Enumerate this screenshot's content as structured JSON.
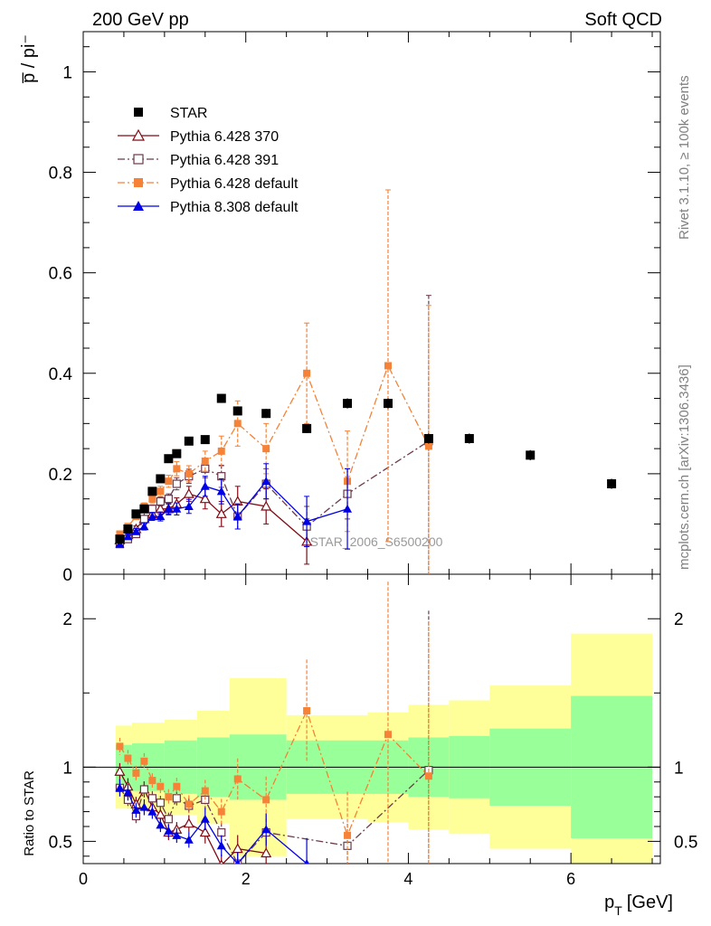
{
  "header": {
    "left_label": "200 GeV pp",
    "right_label": "Soft QCD"
  },
  "side_labels": {
    "rivet": "Rivet 3.1.10, ≥ 100k events",
    "mcplots": "mcplots.cern.ch [arXiv:1306.3436]"
  },
  "analysis_label": "STAR_2006_S6500200",
  "chart_data": {
    "type": "scatter",
    "ylabel": "p̅ / pi⁻",
    "xlabel": "p_T [GeV]",
    "xlabel_main": "p",
    "xlabel_sub": "T",
    "xlabel_unit": "[GeV]",
    "ratio_ylabel": "Ratio to STAR",
    "xlim": [
      0,
      7.1
    ],
    "ylim": [
      0,
      1.08
    ],
    "ratio_ylim": [
      0.35,
      2.3
    ],
    "x_ticks": [
      "0",
      "2",
      "4",
      "6"
    ],
    "y_ticks": [
      "0",
      "0.2",
      "0.4",
      "0.6",
      "0.8",
      "1"
    ],
    "ratio_ticks": [
      "0.5",
      "1",
      "2"
    ],
    "legend_position": "top-left",
    "legend": [
      "STAR",
      "Pythia 6.428 370",
      "Pythia 6.428 391",
      "Pythia 6.428 default",
      "Pythia 8.308 default"
    ],
    "series": [
      {
        "name": "STAR",
        "color": "#000000",
        "marker": "square-filled",
        "line": "none",
        "x": [
          0.45,
          0.55,
          0.65,
          0.75,
          0.85,
          0.95,
          1.05,
          1.15,
          1.3,
          1.5,
          1.7,
          1.9,
          2.25,
          2.75,
          3.25,
          3.75,
          4.25,
          4.75,
          5.5,
          6.5
        ],
        "y": [
          0.07,
          0.09,
          0.12,
          0.13,
          0.165,
          0.19,
          0.23,
          0.24,
          0.265,
          0.268,
          0.35,
          0.325,
          0.32,
          0.29,
          0.34,
          0.34,
          0.27,
          0.27,
          0.237,
          0.18
        ],
        "err": [
          0.005,
          0.005,
          0.005,
          0.006,
          0.006,
          0.007,
          0.007,
          0.008,
          0.008,
          0.008,
          0.009,
          0.009,
          0.009,
          0.009,
          0.01,
          0.01,
          0.01,
          0.01,
          0.01,
          0.01
        ]
      },
      {
        "name": "Pythia 6.428 370",
        "color": "#7f0a14",
        "marker": "triangle-open",
        "line": "solid",
        "x": [
          0.45,
          0.55,
          0.65,
          0.75,
          0.85,
          0.95,
          1.05,
          1.15,
          1.3,
          1.5,
          1.7,
          1.9,
          2.25,
          2.75
        ],
        "y": [
          0.068,
          0.078,
          0.09,
          0.11,
          0.12,
          0.13,
          0.13,
          0.14,
          0.16,
          0.15,
          0.12,
          0.145,
          0.135,
          0.065
        ],
        "err": [
          0.004,
          0.005,
          0.006,
          0.007,
          0.008,
          0.01,
          0.012,
          0.012,
          0.015,
          0.02,
          0.025,
          0.03,
          0.035,
          0.045
        ]
      },
      {
        "name": "Pythia 6.428 391",
        "color": "#6b3a4a",
        "marker": "square-open",
        "line": "dashdot",
        "x": [
          0.45,
          0.55,
          0.65,
          0.75,
          0.85,
          0.95,
          1.05,
          1.15,
          1.3,
          1.5,
          1.7,
          1.9,
          2.25,
          2.75,
          3.25,
          4.25
        ],
        "y": [
          0.06,
          0.07,
          0.08,
          0.11,
          0.13,
          0.145,
          0.15,
          0.18,
          0.195,
          0.21,
          0.195,
          0.115,
          0.18,
          0.095,
          0.16,
          0.265
        ],
        "err": [
          0.004,
          0.005,
          0.006,
          0.007,
          0.008,
          0.009,
          0.01,
          0.012,
          0.014,
          0.018,
          0.022,
          0.025,
          0.03,
          0.04,
          0.05,
          0.29
        ]
      },
      {
        "name": "Pythia 6.428 default",
        "color": "#f58236",
        "marker": "square-filled",
        "line": "dashdot",
        "x": [
          0.45,
          0.55,
          0.65,
          0.75,
          0.85,
          0.95,
          1.05,
          1.15,
          1.3,
          1.5,
          1.7,
          1.9,
          2.25,
          2.75,
          3.25,
          3.75,
          4.25
        ],
        "y": [
          0.08,
          0.095,
          0.115,
          0.135,
          0.15,
          0.165,
          0.185,
          0.21,
          0.2,
          0.225,
          0.245,
          0.3,
          0.25,
          0.4,
          0.185,
          0.415,
          0.255
        ],
        "err": [
          0.004,
          0.005,
          0.006,
          0.007,
          0.008,
          0.01,
          0.012,
          0.014,
          0.016,
          0.02,
          0.03,
          0.045,
          0.05,
          0.1,
          0.1,
          0.35,
          0.28
        ]
      },
      {
        "name": "Pythia 8.308 default",
        "color": "#0000e6",
        "marker": "triangle-filled",
        "line": "solid",
        "x": [
          0.45,
          0.55,
          0.65,
          0.75,
          0.85,
          0.95,
          1.05,
          1.15,
          1.3,
          1.5,
          1.7,
          1.9,
          2.25,
          2.75,
          3.25
        ],
        "y": [
          0.06,
          0.075,
          0.085,
          0.095,
          0.115,
          0.115,
          0.13,
          0.13,
          0.135,
          0.175,
          0.165,
          0.115,
          0.185,
          0.105,
          0.13
        ],
        "err": [
          0.004,
          0.005,
          0.006,
          0.007,
          0.008,
          0.009,
          0.01,
          0.012,
          0.014,
          0.02,
          0.025,
          0.025,
          0.035,
          0.05,
          0.08
        ]
      }
    ],
    "ratio_series": [
      {
        "name": "Pythia 6.428 370",
        "x": [
          0.45,
          0.55,
          0.65,
          0.75,
          0.85,
          0.95,
          1.05,
          1.15,
          1.3,
          1.5,
          1.7,
          1.9,
          2.25
        ],
        "y": [
          0.97,
          0.87,
          0.75,
          0.85,
          0.73,
          0.68,
          0.56,
          0.58,
          0.62,
          0.56,
          0.34,
          0.45,
          0.42
        ]
      },
      {
        "name": "Pythia 6.428 391",
        "x": [
          0.45,
          0.55,
          0.65,
          0.75,
          0.85,
          0.95,
          1.05,
          1.15,
          1.3,
          1.5,
          1.7,
          1.9,
          2.25,
          3.25,
          4.25
        ],
        "y": [
          0.86,
          0.78,
          0.67,
          0.85,
          0.79,
          0.76,
          0.65,
          0.79,
          0.74,
          0.78,
          0.56,
          0.35,
          0.56,
          0.47,
          0.98
        ]
      },
      {
        "name": "Pythia 6.428 default",
        "x": [
          0.45,
          0.55,
          0.65,
          0.75,
          0.85,
          0.95,
          1.05,
          1.15,
          1.3,
          1.5,
          1.7,
          1.9,
          2.25,
          2.75,
          3.25,
          3.75,
          4.25
        ],
        "y": [
          1.14,
          1.06,
          0.96,
          1.04,
          0.91,
          0.87,
          0.8,
          0.87,
          0.75,
          0.84,
          0.7,
          0.92,
          0.78,
          1.38,
          0.54,
          1.22,
          0.94
        ]
      },
      {
        "name": "Pythia 8.308 default",
        "x": [
          0.45,
          0.55,
          0.65,
          0.75,
          0.85,
          0.95,
          1.05,
          1.15,
          1.3,
          1.5,
          1.7,
          1.9,
          2.25,
          2.75
        ],
        "y": [
          0.86,
          0.83,
          0.71,
          0.73,
          0.7,
          0.61,
          0.57,
          0.54,
          0.51,
          0.65,
          0.47,
          0.35,
          0.58,
          0.35
        ]
      }
    ],
    "ratio_band_bins": [
      {
        "x0": 0.4,
        "x1": 0.6,
        "green_lo": 0.85,
        "green_hi": 1.15,
        "yellow_lo": 0.72,
        "yellow_hi": 1.28
      },
      {
        "x0": 0.6,
        "x1": 1.0,
        "green_lo": 0.84,
        "green_hi": 1.16,
        "yellow_lo": 0.7,
        "yellow_hi": 1.3
      },
      {
        "x0": 1.0,
        "x1": 1.4,
        "green_lo": 0.82,
        "green_hi": 1.18,
        "yellow_lo": 0.68,
        "yellow_hi": 1.32
      },
      {
        "x0": 1.4,
        "x1": 1.8,
        "green_lo": 0.8,
        "green_hi": 1.2,
        "yellow_lo": 0.62,
        "yellow_hi": 1.38
      },
      {
        "x0": 1.8,
        "x1": 2.5,
        "green_lo": 0.78,
        "green_hi": 1.22,
        "yellow_lo": 0.4,
        "yellow_hi": 1.6
      },
      {
        "x0": 2.5,
        "x1": 3.5,
        "green_lo": 0.82,
        "green_hi": 1.18,
        "yellow_lo": 0.65,
        "yellow_hi": 1.35
      },
      {
        "x0": 3.5,
        "x1": 4.0,
        "green_lo": 0.82,
        "green_hi": 1.18,
        "yellow_lo": 0.63,
        "yellow_hi": 1.37
      },
      {
        "x0": 4.0,
        "x1": 4.5,
        "green_lo": 0.8,
        "green_hi": 1.2,
        "yellow_lo": 0.58,
        "yellow_hi": 1.42
      },
      {
        "x0": 4.5,
        "x1": 5.0,
        "green_lo": 0.79,
        "green_hi": 1.21,
        "yellow_lo": 0.55,
        "yellow_hi": 1.45
      },
      {
        "x0": 5.0,
        "x1": 6.0,
        "green_lo": 0.74,
        "green_hi": 1.26,
        "yellow_lo": 0.45,
        "yellow_hi": 1.55
      },
      {
        "x0": 6.0,
        "x1": 7.0,
        "green_lo": 0.52,
        "green_hi": 1.48,
        "yellow_lo": 0.1,
        "yellow_hi": 1.9
      }
    ]
  }
}
